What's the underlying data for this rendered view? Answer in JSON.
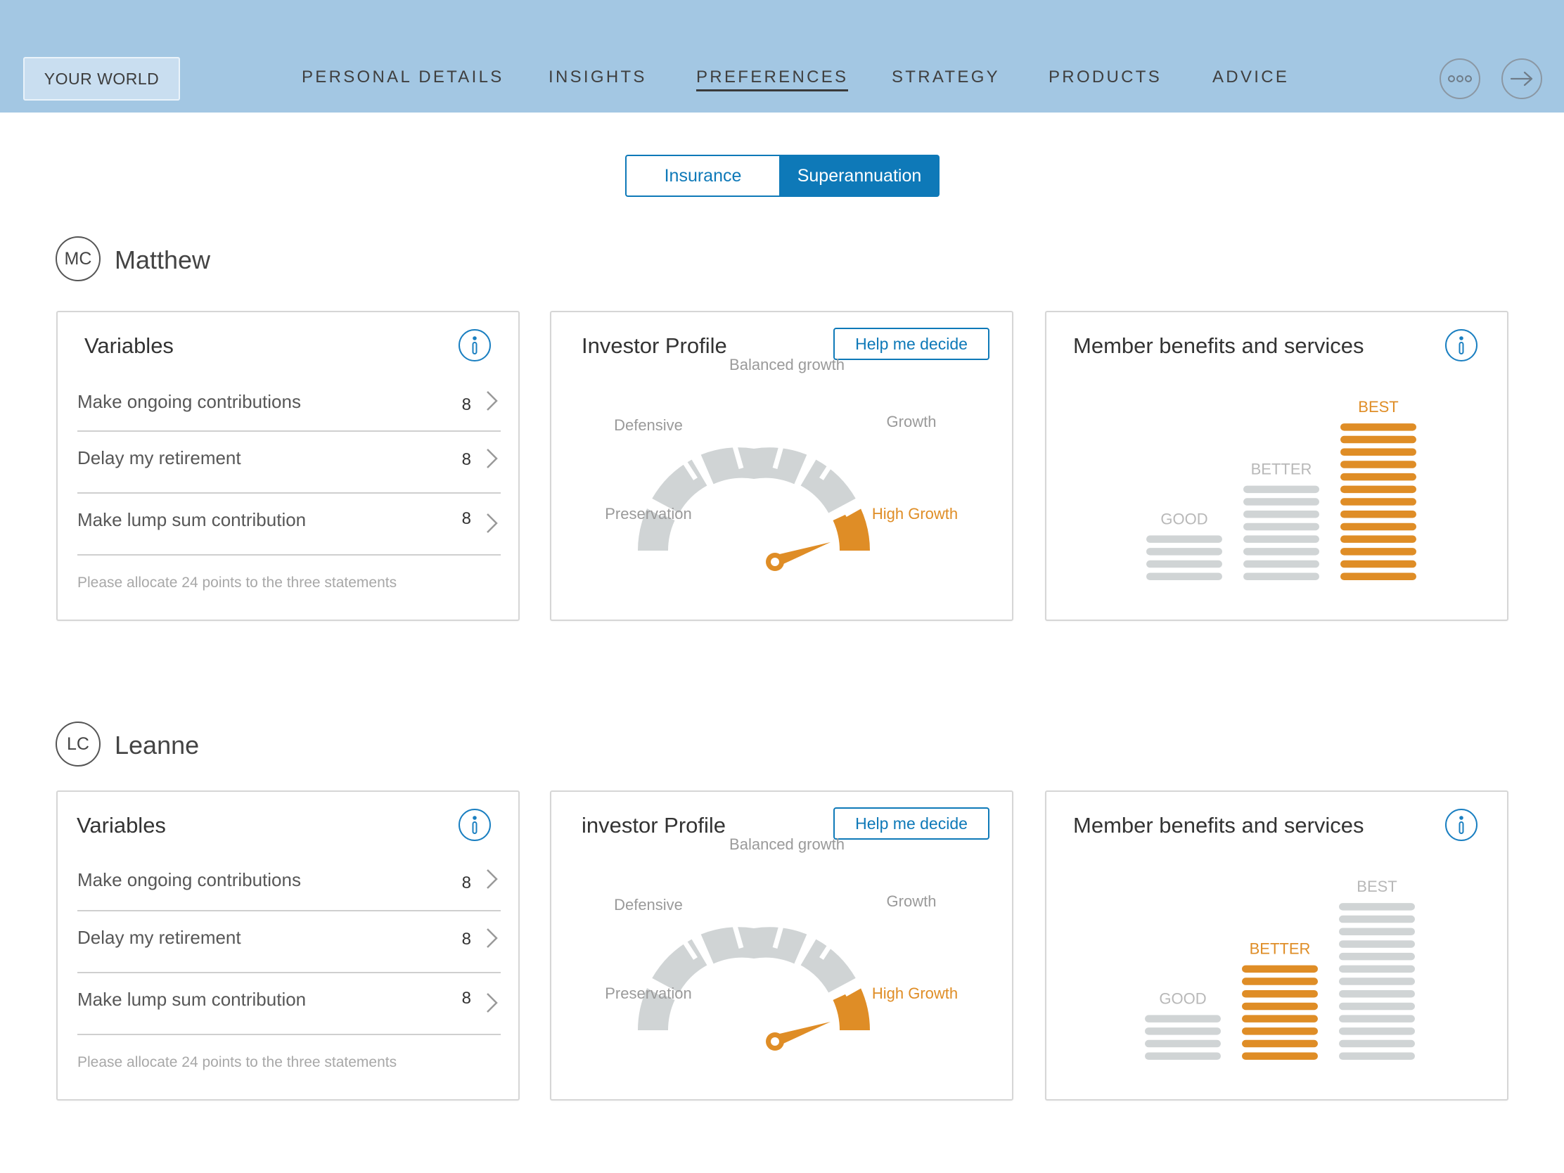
{
  "nav": {
    "your_world": "YOUR WORLD",
    "items": [
      {
        "label": "PERSONAL DETAILS",
        "active": false
      },
      {
        "label": "INSIGHTS",
        "active": false
      },
      {
        "label": "PREFERENCES",
        "active": true
      },
      {
        "label": "STRATEGY",
        "active": false
      },
      {
        "label": "PRODUCTS",
        "active": false
      },
      {
        "label": "ADVICE",
        "active": false
      }
    ],
    "more_icon": "more-dots-icon",
    "next_icon": "arrow-right-icon"
  },
  "toggle": {
    "insurance": "Insurance",
    "superannuation": "Superannuation",
    "selected": "Superannuation"
  },
  "colors": {
    "accent_blue": "#0e79b8",
    "orange": "#df8d26",
    "gray": "#d0d4d5",
    "topbar": "#a3c7e3"
  },
  "people": [
    {
      "initials": "MC",
      "name": "Matthew",
      "variables": {
        "title": "Variables",
        "rows": [
          {
            "label": "Make ongoing contributions",
            "value": "8"
          },
          {
            "label": "Delay my retirement",
            "value": "8"
          },
          {
            "label": "Make lump sum contribution",
            "value": "8"
          }
        ],
        "note": "Please allocate 24 points to the three statements"
      },
      "investor": {
        "title": "Investor Profile",
        "help": "Help me decide",
        "labels": {
          "preservation": "Preservation",
          "defensive": "Defensive",
          "balanced": "Balanced growth",
          "growth": "Growth",
          "high_growth": "High Growth"
        },
        "selected": "High Growth"
      },
      "benefits": {
        "title": "Member benefits and services",
        "tiers": [
          {
            "label": "GOOD",
            "bars": 4
          },
          {
            "label": "BETTER",
            "bars": 8
          },
          {
            "label": "BEST",
            "bars": 13
          }
        ],
        "selected": "BEST"
      }
    },
    {
      "initials": "LC",
      "name": "Leanne",
      "variables": {
        "title": "Variables",
        "rows": [
          {
            "label": "Make ongoing contributions",
            "value": "8"
          },
          {
            "label": "Delay my retirement",
            "value": "8"
          },
          {
            "label": "Make lump sum contribution",
            "value": "8"
          }
        ],
        "note": "Please allocate 24 points to the three statements"
      },
      "investor": {
        "title": "investor Profile",
        "help": "Help me decide",
        "labels": {
          "preservation": "Preservation",
          "defensive": "Defensive",
          "balanced": "Balanced growth",
          "growth": "Growth",
          "high_growth": "High Growth"
        },
        "selected": "High Growth"
      },
      "benefits": {
        "title": "Member benefits and services",
        "tiers": [
          {
            "label": "GOOD",
            "bars": 4
          },
          {
            "label": "BETTER",
            "bars": 8
          },
          {
            "label": "BEST",
            "bars": 13
          }
        ],
        "selected": "BETTER"
      }
    }
  ]
}
